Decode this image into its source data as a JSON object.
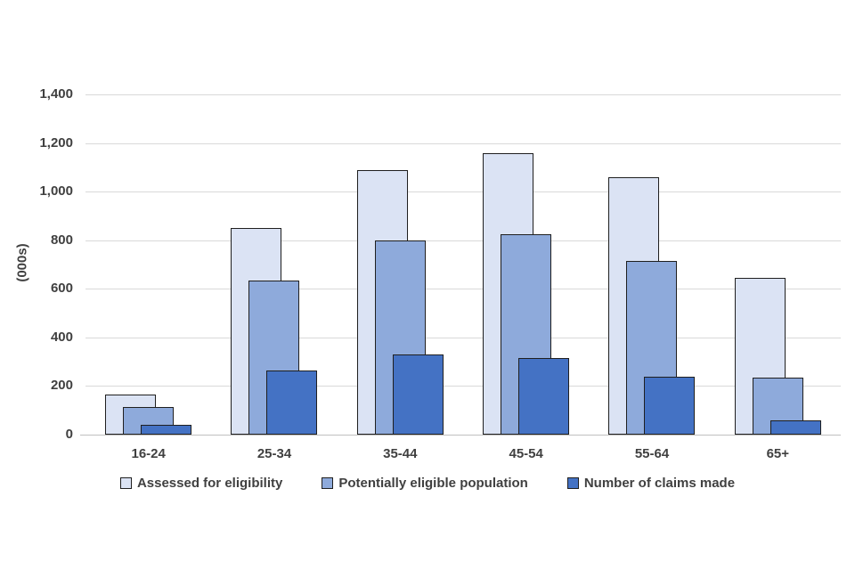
{
  "chart_data": {
    "type": "bar",
    "title": "",
    "ylabel": "(000s)",
    "xlabel": "",
    "categories": [
      "16-24",
      "25-34",
      "35-44",
      "45-54",
      "55-64",
      "65+"
    ],
    "series": [
      {
        "name": "Assessed for eligibility",
        "color": "#dbe3f4",
        "values": [
          165,
          850,
          1090,
          1160,
          1060,
          645
        ]
      },
      {
        "name": "Potentially eligible population",
        "color": "#8eaadb",
        "values": [
          115,
          635,
          800,
          825,
          715,
          235
        ]
      },
      {
        "name": "Number of claims made",
        "color": "#4472c4",
        "values": [
          40,
          265,
          330,
          315,
          240,
          60
        ]
      }
    ],
    "ylim": [
      0,
      1400
    ],
    "yticks": [
      0,
      200,
      400,
      600,
      800,
      1000,
      1200,
      1400
    ],
    "ytick_labels": [
      "0",
      "200",
      "400",
      "600",
      "800",
      "1,000",
      "1,200",
      "1,400"
    ],
    "grid": true,
    "legend_position": "bottom",
    "colors": {
      "gridline": "#d9d9d9",
      "axis_line": "#bfbfbf",
      "bar_outline": "#1f1f1f",
      "text": "#404040"
    }
  }
}
